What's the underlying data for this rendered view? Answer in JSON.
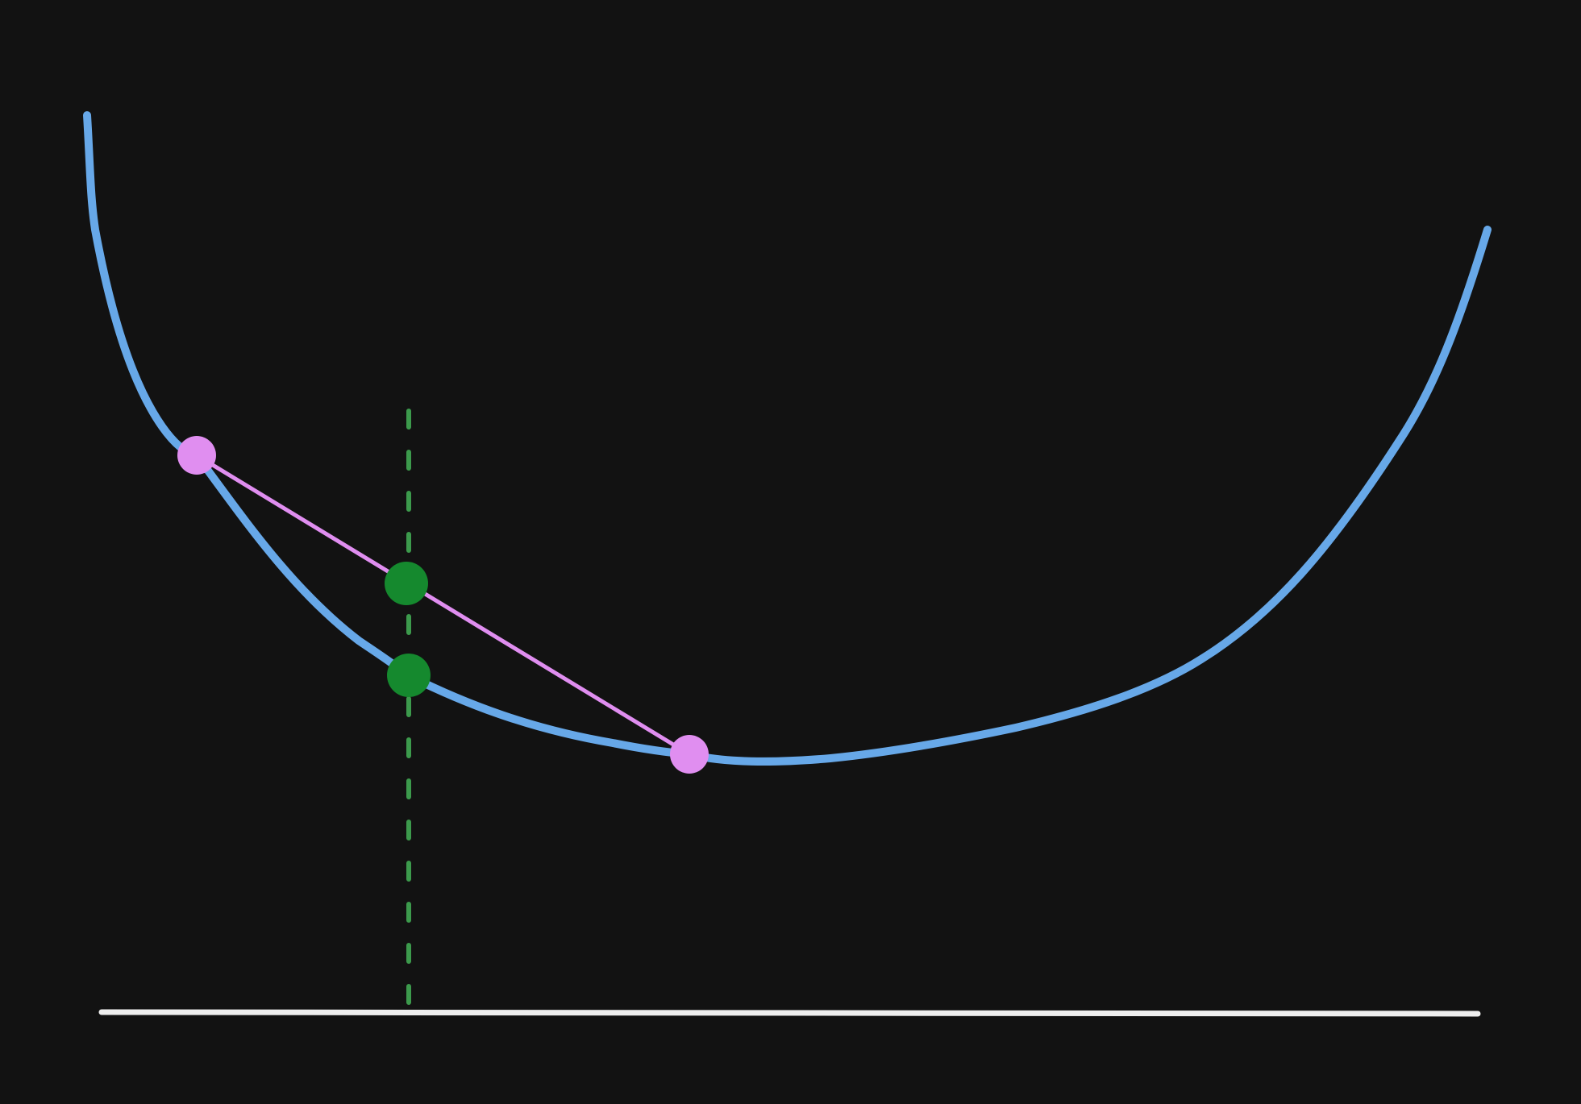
{
  "colors": {
    "background": "#121212",
    "curve": "#67a8e8",
    "chord": "#e08ef0",
    "chord_endpoints": "#e08ef0",
    "interpolation_points": "#15892e",
    "vertical_guide": "#3c9a4c",
    "baseline": "#eeeeee"
  },
  "diagram": {
    "concept": "convex-function-chord",
    "elements": [
      "convex-curve",
      "secant-chord",
      "chord-endpoint-left",
      "chord-endpoint-right",
      "point-on-chord",
      "point-on-curve",
      "vertical-dashed-guide",
      "horizontal-axis"
    ]
  }
}
